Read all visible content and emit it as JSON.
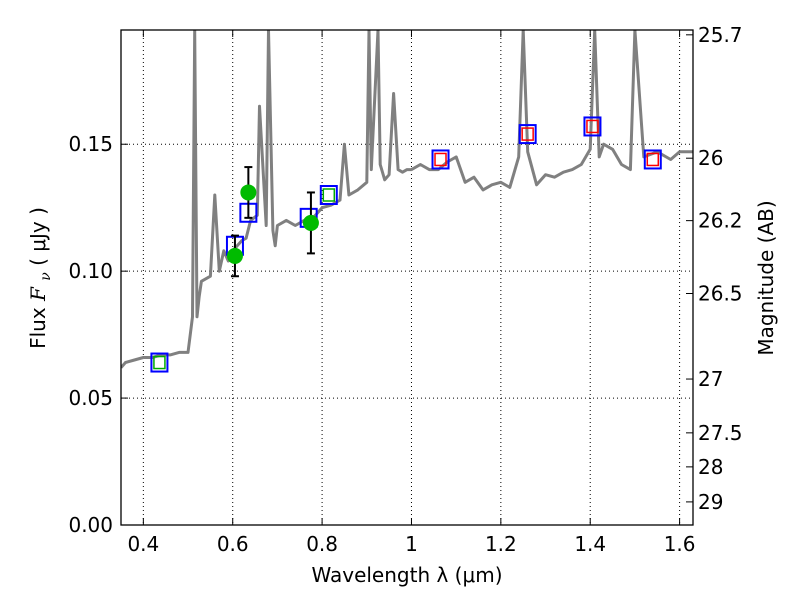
{
  "chart_data": {
    "type": "scatter",
    "title": "",
    "xlabel": "Wavelength  λ (μm)",
    "ylabel_prefix": "Flux  ",
    "ylabel_var": "F",
    "ylabel_sub": "ν",
    "ylabel_unit": "  ( μJy )",
    "y2label": "Magnitude (AB)",
    "xlim": [
      0.35,
      1.63
    ],
    "ylim": [
      0.0,
      0.195
    ],
    "grid": true,
    "grid_style": "dotted",
    "xticks": [
      {
        "value": 0.4,
        "label": "0.4"
      },
      {
        "value": 0.6,
        "label": "0.6"
      },
      {
        "value": 0.8,
        "label": "0.8"
      },
      {
        "value": 1.0,
        "label": "1"
      },
      {
        "value": 1.2,
        "label": "1.2"
      },
      {
        "value": 1.4,
        "label": "1.4"
      },
      {
        "value": 1.6,
        "label": "1.6"
      }
    ],
    "yticks": [
      {
        "value": 0.0,
        "label": "0.00"
      },
      {
        "value": 0.05,
        "label": "0.05"
      },
      {
        "value": 0.1,
        "label": "0.10"
      },
      {
        "value": 0.15,
        "label": "0.15"
      }
    ],
    "y2ticks": [
      {
        "flux": 0.1931,
        "label": "25.7"
      },
      {
        "flux": 0.1445,
        "label": "26"
      },
      {
        "flux": 0.1199,
        "label": "26.2"
      },
      {
        "flux": 0.0912,
        "label": "26.5"
      },
      {
        "flux": 0.0575,
        "label": "27"
      },
      {
        "flux": 0.0363,
        "label": "27.5"
      },
      {
        "flux": 0.0229,
        "label": "28"
      },
      {
        "flux": 0.0091,
        "label": "29"
      }
    ],
    "colors": {
      "spectrum": "#808080",
      "model_box": "#0000ff",
      "observed_point": "#00bb00",
      "errorbar": "#000000",
      "green_fill_box": "#00aa00",
      "red_fill_box": "#ff0000"
    },
    "spectrum": {
      "x": [
        0.35,
        0.36,
        0.38,
        0.4,
        0.42,
        0.44,
        0.46,
        0.48,
        0.5,
        0.51,
        0.515,
        0.52,
        0.525,
        0.53,
        0.55,
        0.56,
        0.57,
        0.58,
        0.59,
        0.6,
        0.61,
        0.62,
        0.63,
        0.64,
        0.655,
        0.66,
        0.675,
        0.68,
        0.69,
        0.695,
        0.7,
        0.72,
        0.74,
        0.76,
        0.78,
        0.8,
        0.82,
        0.84,
        0.85,
        0.86,
        0.88,
        0.9,
        0.905,
        0.91,
        0.925,
        0.93,
        0.94,
        0.95,
        0.96,
        0.97,
        0.98,
        0.99,
        1.0,
        1.02,
        1.04,
        1.06,
        1.08,
        1.1,
        1.12,
        1.14,
        1.16,
        1.18,
        1.2,
        1.22,
        1.24,
        1.25,
        1.26,
        1.28,
        1.3,
        1.32,
        1.34,
        1.36,
        1.38,
        1.4,
        1.41,
        1.42,
        1.43,
        1.45,
        1.47,
        1.49,
        1.5,
        1.52,
        1.55,
        1.58,
        1.6,
        1.63
      ],
      "y": [
        0.062,
        0.064,
        0.065,
        0.066,
        0.066,
        0.067,
        0.067,
        0.068,
        0.068,
        0.082,
        0.195,
        0.082,
        0.09,
        0.096,
        0.098,
        0.13,
        0.1,
        0.108,
        0.104,
        0.108,
        0.11,
        0.112,
        0.113,
        0.12,
        0.122,
        0.165,
        0.118,
        0.195,
        0.116,
        0.11,
        0.118,
        0.12,
        0.118,
        0.12,
        0.121,
        0.125,
        0.126,
        0.128,
        0.15,
        0.13,
        0.132,
        0.135,
        0.195,
        0.14,
        0.195,
        0.142,
        0.136,
        0.138,
        0.17,
        0.14,
        0.139,
        0.14,
        0.14,
        0.142,
        0.14,
        0.14,
        0.143,
        0.145,
        0.135,
        0.137,
        0.132,
        0.134,
        0.135,
        0.133,
        0.145,
        0.195,
        0.147,
        0.134,
        0.138,
        0.137,
        0.139,
        0.14,
        0.142,
        0.148,
        0.195,
        0.145,
        0.15,
        0.148,
        0.142,
        0.14,
        0.195,
        0.145,
        0.147,
        0.144,
        0.147,
        0.147
      ]
    },
    "series": [
      {
        "kind": "model_boxes",
        "points": [
          {
            "x": 0.436,
            "y": 0.064,
            "fill": "green"
          },
          {
            "x": 0.605,
            "y": 0.11,
            "fill": "none"
          },
          {
            "x": 0.635,
            "y": 0.123,
            "fill": "none"
          },
          {
            "x": 0.77,
            "y": 0.121,
            "fill": "none"
          },
          {
            "x": 0.815,
            "y": 0.13,
            "fill": "green"
          },
          {
            "x": 1.065,
            "y": 0.144,
            "fill": "red"
          },
          {
            "x": 1.26,
            "y": 0.154,
            "fill": "red"
          },
          {
            "x": 1.405,
            "y": 0.157,
            "fill": "red"
          },
          {
            "x": 1.54,
            "y": 0.144,
            "fill": "red"
          }
        ]
      },
      {
        "kind": "observed_points",
        "points": [
          {
            "x": 0.605,
            "y": 0.106,
            "err": 0.008
          },
          {
            "x": 0.635,
            "y": 0.131,
            "err": 0.01
          },
          {
            "x": 0.775,
            "y": 0.119,
            "err": 0.012
          }
        ]
      }
    ]
  }
}
